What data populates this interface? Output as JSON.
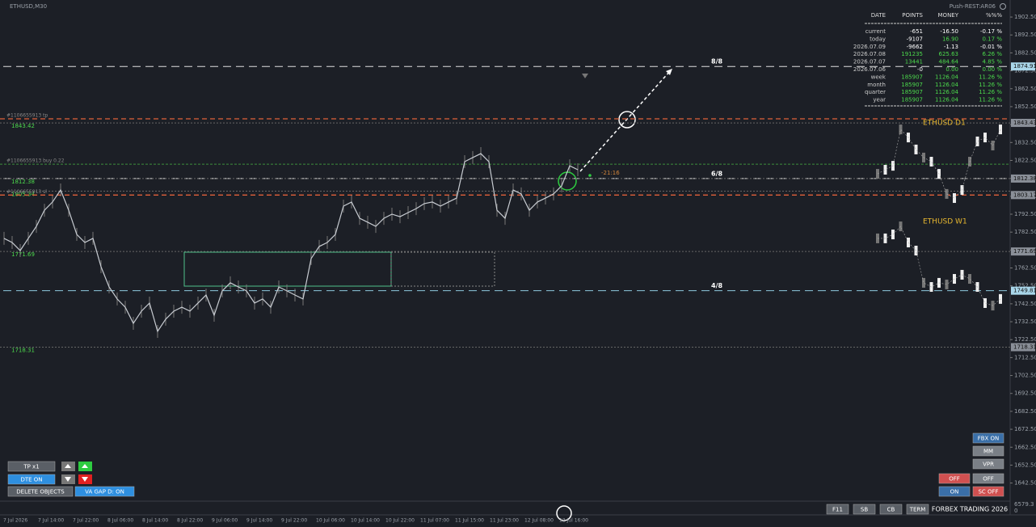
{
  "header": {
    "symbol": "ETHUSD,M30",
    "server": "Push-REST:AR06"
  },
  "price_axis": {
    "ylim": [
      1632.4,
      1912.0
    ],
    "ticks": [
      {
        "value": 1902.5,
        "label": "1902.50"
      },
      {
        "value": 1892.5,
        "label": "1892.50"
      },
      {
        "value": 1882.5,
        "label": "1882.50"
      },
      {
        "value": 1872.5,
        "label": "1872.50"
      },
      {
        "value": 1862.5,
        "label": "1862.50"
      },
      {
        "value": 1852.5,
        "label": "1852.50"
      },
      {
        "value": 1842.5,
        "label": "1842.50"
      },
      {
        "value": 1832.5,
        "label": "1832.50"
      },
      {
        "value": 1822.5,
        "label": "1822.50"
      },
      {
        "value": 1812.5,
        "label": "1812.50"
      },
      {
        "value": 1802.5,
        "label": "1802.50"
      },
      {
        "value": 1792.5,
        "label": "1792.50"
      },
      {
        "value": 1782.5,
        "label": "1782.50"
      },
      {
        "value": 1772.5,
        "label": "1772.50"
      },
      {
        "value": 1762.5,
        "label": "1762.50"
      },
      {
        "value": 1752.5,
        "label": "1752.50"
      },
      {
        "value": 1742.5,
        "label": "1742.50"
      },
      {
        "value": 1732.5,
        "label": "1732.50"
      },
      {
        "value": 1722.5,
        "label": "1722.50"
      },
      {
        "value": 1712.5,
        "label": "1712.50"
      },
      {
        "value": 1702.5,
        "label": "1702.50"
      },
      {
        "value": 1692.5,
        "label": "1692.50"
      },
      {
        "value": 1682.5,
        "label": "1682.50"
      },
      {
        "value": 1672.5,
        "label": "1672.50"
      },
      {
        "value": 1662.5,
        "label": "1662.50"
      },
      {
        "value": 1652.5,
        "label": "1652.50"
      },
      {
        "value": 1642.5,
        "label": "1642.50"
      }
    ],
    "tags": [
      {
        "value": 1874.91,
        "color": "#a9d6ea"
      },
      {
        "value": 1843.43,
        "color": "#8a8f98"
      },
      {
        "value": 1812.38,
        "color": "#8a8f98"
      },
      {
        "value": 1803.17,
        "color": "#8a8f98"
      },
      {
        "value": 1771.69,
        "color": "#8a8f98"
      },
      {
        "value": 1749.81,
        "color": "#a9d6ea"
      },
      {
        "value": 1718.31,
        "color": "#8a8f98"
      }
    ]
  },
  "price_series": {
    "color": "#c8ccd2",
    "closes": [
      1779.0,
      1776.7,
      1772.2,
      1779.0,
      1785.7,
      1794.7,
      1799.3,
      1806.0,
      1794.7,
      1781.2,
      1776.7,
      1779.0,
      1763.2,
      1751.9,
      1745.2,
      1740.6,
      1731.6,
      1738.4,
      1742.9,
      1727.1,
      1733.9,
      1738.4,
      1740.6,
      1738.4,
      1742.9,
      1747.4,
      1736.1,
      1749.7,
      1754.2,
      1751.9,
      1749.7,
      1742.9,
      1745.2,
      1740.6,
      1751.9,
      1749.7,
      1747.4,
      1745.2,
      1767.7,
      1774.5,
      1776.7,
      1781.2,
      1797.0,
      1799.3,
      1790.2,
      1788.0,
      1785.7,
      1790.2,
      1792.5,
      1791.1,
      1793.4,
      1795.6,
      1798.4,
      1799.3,
      1797.0,
      1799.3,
      1801.5,
      1821.8,
      1824.1,
      1826.3,
      1821.8,
      1794.7,
      1790.2,
      1806.0,
      1803.8,
      1794.7,
      1799.3,
      1801.5,
      1803.8,
      1808.3,
      1819.5,
      1817.3
    ]
  },
  "mini_charts": [
    {
      "label": "ETHUSD D1",
      "color": "#e8b830",
      "closes": [
        1815.0,
        1817.3,
        1819.5,
        1839.8,
        1835.3,
        1828.6,
        1824.1,
        1821.8,
        1815.0,
        1803.8,
        1801.5,
        1806.0,
        1821.8,
        1833.1,
        1835.3,
        1830.8,
        1839.8
      ]
    },
    {
      "label": "ETHUSD W1",
      "color": "#e8b830",
      "closes": [
        1779.0,
        1779.0,
        1781.2,
        1785.7,
        1776.7,
        1772.2,
        1754.2,
        1751.9,
        1754.2,
        1753.3,
        1756.4,
        1758.7,
        1756.4,
        1751.9,
        1742.9,
        1741.5,
        1745.2
      ]
    }
  ],
  "order_lines": [
    {
      "text": "#1106655913 tp",
      "value": 1845.7,
      "color": "#e0603a"
    },
    {
      "text": "#1106655913 buy 0.22",
      "value": 1820.4,
      "color": "#3d8f3d"
    },
    {
      "text": "#1106655913 sl",
      "value": 1803.17,
      "color": "#e0603a"
    }
  ],
  "levels": [
    {
      "value": 1843.42,
      "label": "1843.42"
    },
    {
      "value": 1812.38,
      "label": "1812.38"
    },
    {
      "value": 1805.34,
      "label": "1805.34"
    },
    {
      "value": 1771.69,
      "label": "1771.69"
    },
    {
      "value": 1718.31,
      "label": "1718.31"
    }
  ],
  "murrey": [
    {
      "label": "8/8",
      "value": 1874.91
    },
    {
      "label": "6/8",
      "value": 1812.38
    },
    {
      "label": "4/8",
      "value": 1749.81
    }
  ],
  "countdown": "-21:16",
  "stats": {
    "columns": [
      "DATE",
      "POINTS",
      "MONEY",
      "%%%"
    ],
    "rows": [
      [
        "current",
        "-651",
        "-16.50",
        "-0.17 %"
      ],
      [
        "today",
        "-9107",
        "16.90",
        "0.17 %"
      ],
      [
        "2026.07.09",
        "-9662",
        "-1.13",
        "-0.01 %"
      ],
      [
        "2026.07.08",
        "191235",
        "625.63",
        "6.26 %"
      ],
      [
        "2026.07.07",
        "13441",
        "484.64",
        "4.85 %"
      ],
      [
        "2026.07.06",
        "-0",
        "0.00",
        "0.00 %"
      ],
      [
        "week",
        "185907",
        "1126.04",
        "11.26 %"
      ],
      [
        "month",
        "185907",
        "1126.04",
        "11.26 %"
      ],
      [
        "quarter",
        "185907",
        "1126.04",
        "11.26 %"
      ],
      [
        "year",
        "185907",
        "1126.04",
        "11.26 %"
      ]
    ]
  },
  "buttons": [
    {
      "text": "TP x1",
      "color": "#5a5f66"
    },
    {
      "text": "DTE ON",
      "color": "#2e8fe0"
    },
    {
      "text": "DELETE OBJECTS",
      "color": "#5a5f66"
    },
    {
      "text": "VA GAP D: ON",
      "color": "#2e8fe0"
    },
    {
      "text": "FBX ON",
      "color": "#3a6fa8"
    },
    {
      "text": "MM",
      "color": "#7a7f86"
    },
    {
      "text": "VPR",
      "color": "#7a7f86"
    },
    {
      "text": "OFF",
      "color": "#d05050"
    },
    {
      "text": "OFF",
      "color": "#7a7f86"
    },
    {
      "text": "ON",
      "color": "#3a6fa8"
    },
    {
      "text": "SC OFF",
      "color": "#d05050"
    },
    {
      "text": "F11",
      "color": "#5a5f66"
    },
    {
      "text": "SB",
      "color": "#5a5f66"
    },
    {
      "text": "CB",
      "color": "#5a5f66"
    },
    {
      "text": "TERM",
      "color": "#5a5f66"
    }
  ],
  "footer": "FORBEX TRADING 2026",
  "indicator": {
    "max": "6579.3",
    "min": "0"
  },
  "time_axis": [
    "7 Jul 2026",
    "7 Jul 14:00",
    "7 Jul 22:00",
    "8 Jul 06:00",
    "8 Jul 14:00",
    "8 Jul 22:00",
    "9 Jul 06:00",
    "9 Jul 14:00",
    "9 Jul 22:00",
    "10 Jul 06:00",
    "10 Jul 14:00",
    "10 Jul 22:00",
    "11 Jul 07:00",
    "11 Jul 15:00",
    "11 Jul 23:00",
    "12 Jul 08:00",
    "12 Jul 16:00"
  ]
}
